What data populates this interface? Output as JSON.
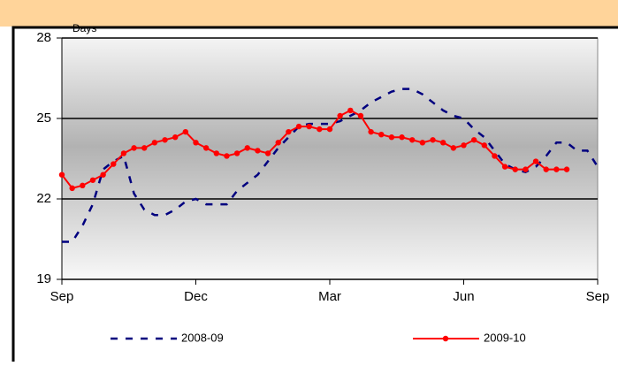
{
  "chart_data": {
    "type": "line",
    "y_label": "Days",
    "categories": [
      "Sep",
      null,
      null,
      null,
      null,
      null,
      null,
      null,
      null,
      null,
      null,
      null,
      null,
      "Dec",
      null,
      null,
      null,
      null,
      null,
      null,
      null,
      null,
      null,
      null,
      null,
      null,
      "Mar",
      null,
      null,
      null,
      null,
      null,
      null,
      null,
      null,
      null,
      null,
      null,
      null,
      "Jun",
      null,
      null,
      null,
      null,
      null,
      null,
      null,
      null,
      null,
      null,
      null,
      null,
      "Sep"
    ],
    "series": [
      {
        "name": "2008-09",
        "color": "#00007f",
        "style": "dashed",
        "values": [
          20.4,
          20.4,
          21.0,
          21.8,
          23.1,
          23.4,
          23.6,
          22.2,
          21.6,
          21.4,
          21.4,
          21.6,
          21.9,
          22.0,
          21.8,
          21.8,
          21.8,
          22.3,
          22.6,
          22.9,
          23.4,
          23.9,
          24.3,
          24.7,
          24.8,
          24.8,
          24.8,
          24.9,
          25.1,
          25.3,
          25.6,
          25.8,
          26.0,
          26.1,
          26.1,
          25.9,
          25.6,
          25.3,
          25.1,
          25.0,
          24.6,
          24.3,
          23.8,
          23.3,
          23.1,
          23.0,
          23.2,
          23.6,
          24.1,
          24.1,
          23.8,
          23.8,
          23.2
        ]
      },
      {
        "name": "2009-10",
        "color": "#ff0000",
        "style": "solid-markers",
        "values": [
          22.9,
          22.4,
          22.5,
          22.7,
          22.9,
          23.3,
          23.7,
          23.9,
          23.9,
          24.1,
          24.2,
          24.3,
          24.5,
          24.1,
          23.9,
          23.7,
          23.6,
          23.7,
          23.9,
          23.8,
          23.7,
          24.1,
          24.5,
          24.7,
          24.7,
          24.6,
          24.6,
          25.1,
          25.3,
          25.1,
          24.5,
          24.4,
          24.3,
          24.3,
          24.2,
          24.1,
          24.2,
          24.1,
          23.9,
          24.0,
          24.2,
          24.0,
          23.6,
          23.2,
          23.1,
          23.1,
          23.4,
          23.1,
          23.1,
          23.1,
          null,
          null,
          null
        ]
      }
    ],
    "ylim": [
      19,
      28
    ],
    "yticks": [
      19,
      22,
      25,
      28
    ],
    "grid": true
  }
}
